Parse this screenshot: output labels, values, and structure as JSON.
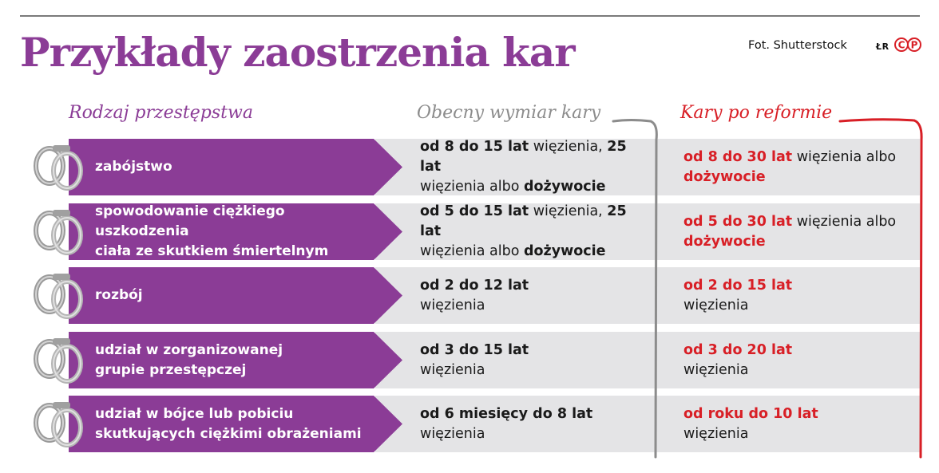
{
  "title": "Przykłady zaostrzenia kar",
  "credit": "Fot. Shutterstock",
  "lr": "ŁR",
  "logo": "CP",
  "colors": {
    "purple": "#8b3c96",
    "red": "#d81f26",
    "gray": "#8c8c8c",
    "row_bg": "#e4e4e6"
  },
  "headers": {
    "crime": "Rodzaj przestępstwa",
    "current": "Obecny wymiar kary",
    "reform": "Kary po reformie"
  },
  "rows": [
    {
      "crime": [
        "zabójstwo"
      ],
      "current": [
        [
          {
            "t": "od 8 do 15 lat",
            "b": true
          },
          {
            "t": " więzienia, ",
            "b": false
          },
          {
            "t": "25 lat",
            "b": true
          }
        ],
        [
          {
            "t": "więzienia albo ",
            "b": false
          },
          {
            "t": "dożywocie",
            "b": true
          }
        ]
      ],
      "reform": [
        [
          {
            "t": "od 8 do 30 lat",
            "r": true
          },
          {
            "t": " więzienia albo",
            "r": false
          }
        ],
        [
          {
            "t": "dożywocie",
            "r": true
          }
        ]
      ]
    },
    {
      "crime": [
        "spowodowanie ciężkiego uszkodzenia",
        "ciała ze skutkiem śmiertelnym"
      ],
      "current": [
        [
          {
            "t": "od 5 do 15 lat",
            "b": true
          },
          {
            "t": " więzienia, ",
            "b": false
          },
          {
            "t": "25 lat",
            "b": true
          }
        ],
        [
          {
            "t": "więzienia albo ",
            "b": false
          },
          {
            "t": "dożywocie",
            "b": true
          }
        ]
      ],
      "reform": [
        [
          {
            "t": "od 5 do 30 lat",
            "r": true
          },
          {
            "t": " więzienia albo",
            "r": false
          }
        ],
        [
          {
            "t": "dożywocie",
            "r": true
          }
        ]
      ]
    },
    {
      "crime": [
        "rozbój"
      ],
      "current": [
        [
          {
            "t": "od 2 do 12 lat",
            "b": true
          }
        ],
        [
          {
            "t": "więzienia",
            "b": false
          }
        ]
      ],
      "reform": [
        [
          {
            "t": "od 2 do 15 lat",
            "r": true
          }
        ],
        [
          {
            "t": "więzienia",
            "r": false
          }
        ]
      ]
    },
    {
      "crime": [
        "udział w zorganizowanej",
        "grupie przestępczej"
      ],
      "current": [
        [
          {
            "t": "od 3 do 15 lat",
            "b": true
          }
        ],
        [
          {
            "t": "więzienia",
            "b": false
          }
        ]
      ],
      "reform": [
        [
          {
            "t": "od 3 do 20 lat",
            "r": true
          }
        ],
        [
          {
            "t": "więzienia",
            "r": false
          }
        ]
      ]
    },
    {
      "crime": [
        "udział w bójce lub pobiciu",
        "skutkujących ciężkimi obrażeniami"
      ],
      "current": [
        [
          {
            "t": "od 6 miesięcy do 8 lat",
            "b": true
          }
        ],
        [
          {
            "t": "więzienia",
            "b": false
          }
        ]
      ],
      "reform": [
        [
          {
            "t": "od roku do 10 lat",
            "r": true
          }
        ],
        [
          {
            "t": "więzienia",
            "r": false
          }
        ]
      ]
    }
  ]
}
